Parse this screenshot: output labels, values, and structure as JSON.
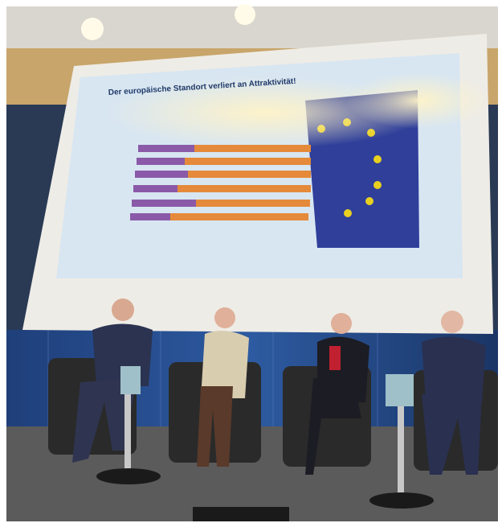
{
  "slide": {
    "title": "Der europäische Standort verliert an Attraktivität!"
  }
}
